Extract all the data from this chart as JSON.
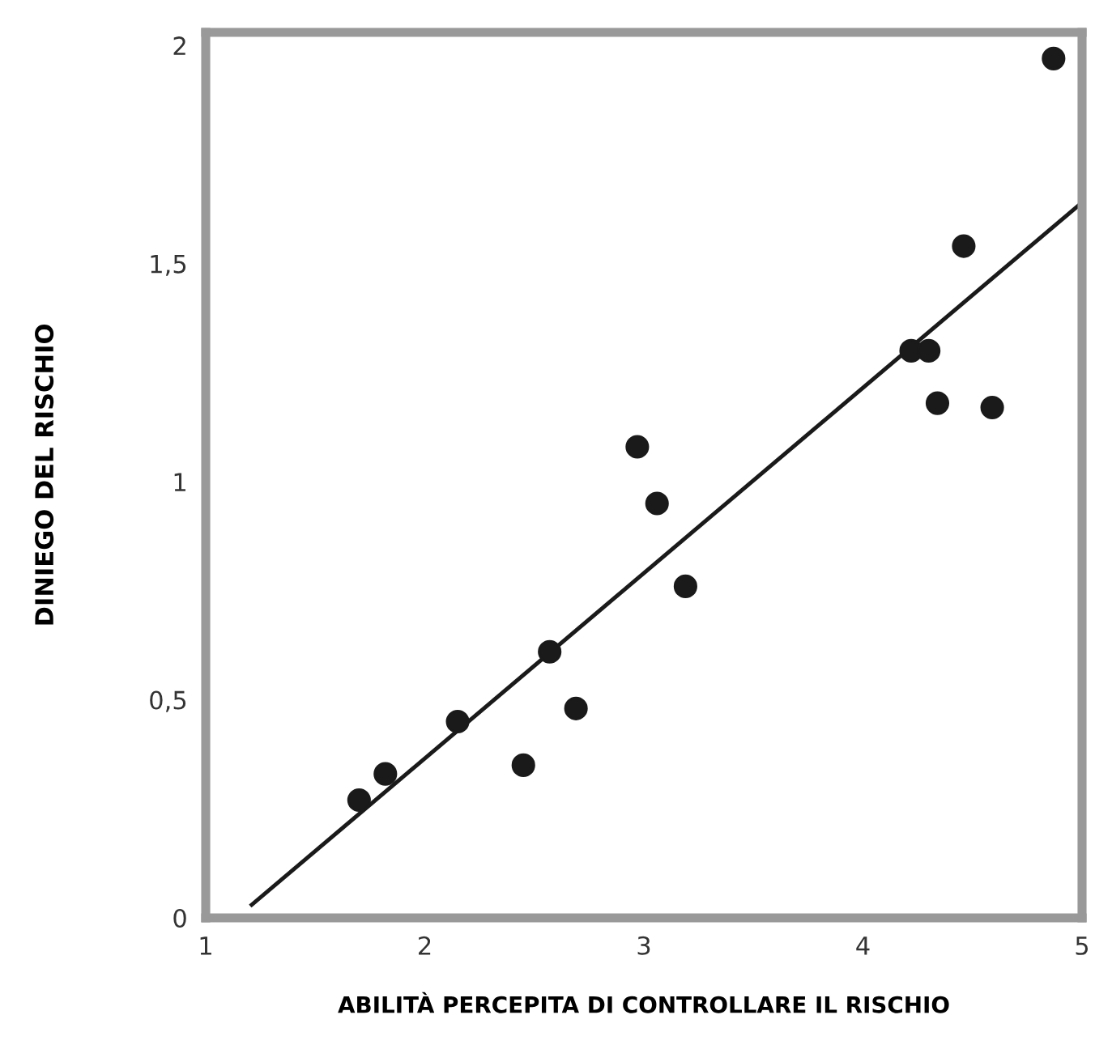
{
  "chart_data": {
    "type": "scatter",
    "xlabel": "ABILITÀ PERCEPITA DI CONTROLLARE IL RISCHIO",
    "ylabel": "DINIEGO DEL RISCHIO",
    "xlim": [
      1,
      5
    ],
    "ylim": [
      0,
      2.03
    ],
    "xticks": [
      1,
      2,
      3,
      4,
      5
    ],
    "yticks": [
      0,
      {
        "value": 0.5,
        "label": "0,5"
      },
      1,
      {
        "value": 1.5,
        "label": "1,5"
      },
      2
    ],
    "grid": false,
    "series": [
      {
        "color": "#1a1a1a",
        "marker": "circle",
        "x": [
          1.7,
          1.82,
          2.15,
          2.45,
          2.57,
          2.69,
          2.97,
          3.06,
          3.19,
          4.22,
          4.3,
          4.34,
          4.46,
          4.59,
          4.87
        ],
        "values": [
          0.27,
          0.33,
          0.45,
          0.35,
          0.61,
          0.48,
          1.08,
          0.95,
          0.76,
          1.3,
          1.3,
          1.18,
          1.54,
          1.17,
          1.97
        ]
      },
      {
        "type": "line",
        "color": "#1a1a1a",
        "x": [
          1.21,
          5
        ],
        "values": [
          0.03,
          1.64
        ],
        "line_style": "solid"
      }
    ]
  }
}
